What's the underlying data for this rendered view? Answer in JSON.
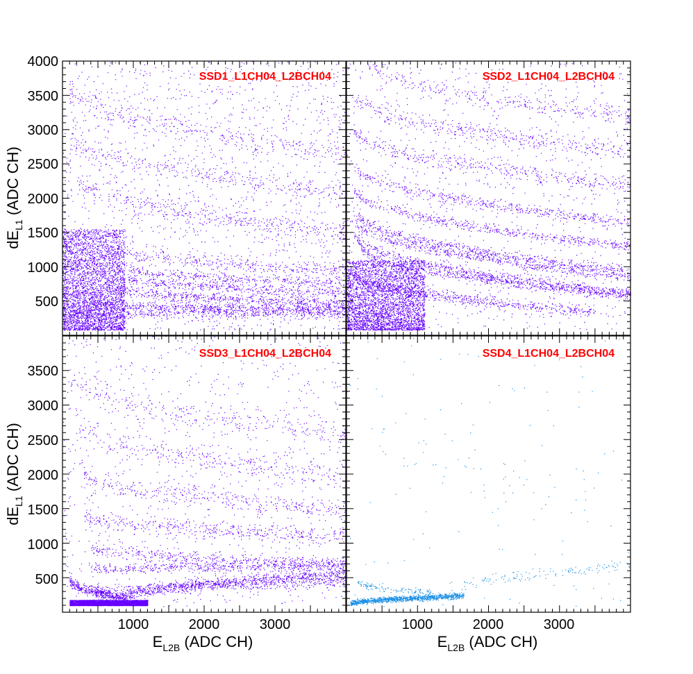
{
  "chart_data": [
    {
      "type": "scatter",
      "title": "SSD1_L1CH04_L2BCH04",
      "xlabel": "",
      "ylabel": "dE_{L1} (ADC CH)",
      "xlim": [
        0,
        4000
      ],
      "ylim": [
        0,
        4000
      ],
      "yticks": [
        "4000",
        "3500",
        "3000",
        "2500",
        "2000",
        "1500",
        "1000",
        "500"
      ],
      "xticks": [],
      "color": "#6600ff",
      "grid": false,
      "dense_region": {
        "x": [
          0,
          880
        ],
        "y": [
          80,
          1550
        ]
      },
      "bands": [
        {
          "e0": 100,
          "d0": 330,
          "e1": 4000,
          "d1": 330,
          "w": 45,
          "n": 600
        },
        {
          "e0": 400,
          "d0": 480,
          "e1": 4000,
          "d1": 380,
          "w": 35,
          "n": 600
        },
        {
          "e0": 800,
          "d0": 700,
          "e1": 4000,
          "d1": 470,
          "w": 35,
          "n": 500
        },
        {
          "e0": 900,
          "d0": 850,
          "e1": 4000,
          "d1": 620,
          "w": 35,
          "n": 420
        },
        {
          "e0": 900,
          "d0": 1000,
          "e1": 4000,
          "d1": 760,
          "w": 35,
          "n": 350
        },
        {
          "e0": 900,
          "d0": 1250,
          "e1": 4000,
          "d1": 950,
          "w": 55,
          "n": 300
        },
        {
          "e0": 200,
          "d0": 2300,
          "e1": 4000,
          "d1": 1500,
          "w": 70,
          "n": 350
        },
        {
          "e0": 100,
          "d0": 2900,
          "e1": 4000,
          "d1": 2100,
          "w": 70,
          "n": 300
        },
        {
          "e0": 100,
          "d0": 3600,
          "e1": 4000,
          "d1": 2700,
          "w": 80,
          "n": 280
        }
      ],
      "scatter_density": 1600
    },
    {
      "type": "scatter",
      "title": "SSD2_L1CH04_L2BCH04",
      "xlabel": "",
      "ylabel": "",
      "xlim": [
        0,
        4000
      ],
      "ylim": [
        0,
        4000
      ],
      "yticks": [],
      "xticks": [],
      "color": "#6600ff",
      "grid": false,
      "dense_region": {
        "x": [
          0,
          1100
        ],
        "y": [
          80,
          1100
        ]
      },
      "bands": [
        {
          "e0": 100,
          "d0": 900,
          "e1": 3500,
          "d1": 350,
          "w": 40,
          "n": 600
        },
        {
          "e0": 200,
          "d0": 1300,
          "e1": 4000,
          "d1": 580,
          "w": 35,
          "n": 600
        },
        {
          "e0": 100,
          "d0": 1500,
          "e1": 4000,
          "d1": 620,
          "w": 35,
          "n": 550
        },
        {
          "e0": 100,
          "d0": 1700,
          "e1": 4000,
          "d1": 860,
          "w": 35,
          "n": 550
        },
        {
          "e0": 100,
          "d0": 1850,
          "e1": 4000,
          "d1": 930,
          "w": 35,
          "n": 500
        },
        {
          "e0": 100,
          "d0": 2150,
          "e1": 4000,
          "d1": 1300,
          "w": 35,
          "n": 500
        },
        {
          "e0": 100,
          "d0": 2500,
          "e1": 4000,
          "d1": 1650,
          "w": 45,
          "n": 450
        },
        {
          "e0": 100,
          "d0": 3000,
          "e1": 4000,
          "d1": 2200,
          "w": 60,
          "n": 400
        },
        {
          "e0": 100,
          "d0": 3500,
          "e1": 4000,
          "d1": 2700,
          "w": 60,
          "n": 380
        },
        {
          "e0": 300,
          "d0": 4000,
          "e1": 4000,
          "d1": 3200,
          "w": 70,
          "n": 300
        }
      ],
      "scatter_density": 900
    },
    {
      "type": "scatter",
      "title": "SSD3_L1CH04_L2BCH04",
      "xlabel": "E_{L2B} (ADC CH)",
      "ylabel": "dE_{L1} (ADC CH)",
      "xlim": [
        0,
        4000
      ],
      "ylim": [
        0,
        4000
      ],
      "yticks": [
        "3500",
        "3000",
        "2500",
        "2000",
        "1500",
        "1000",
        "500"
      ],
      "xticks": [
        "1000",
        "2000",
        "3000"
      ],
      "color": "#6600ff",
      "grid": false,
      "dense_region": {
        "x": [
          100,
          1200
        ],
        "y": [
          100,
          180
        ]
      },
      "bands": [
        {
          "e0": 100,
          "d0": 480,
          "e1": 900,
          "d1": 200,
          "w": 40,
          "n": 450
        },
        {
          "e0": 900,
          "d0": 200,
          "e1": 4000,
          "d1": 560,
          "w": 40,
          "n": 700
        },
        {
          "e0": 500,
          "d0": 250,
          "e1": 4000,
          "d1": 450,
          "w": 40,
          "n": 550
        },
        {
          "e0": 400,
          "d0": 620,
          "e1": 4000,
          "d1": 680,
          "w": 40,
          "n": 500
        },
        {
          "e0": 400,
          "d0": 950,
          "e1": 4000,
          "d1": 700,
          "w": 45,
          "n": 420
        },
        {
          "e0": 300,
          "d0": 1400,
          "e1": 4000,
          "d1": 1100,
          "w": 60,
          "n": 400
        },
        {
          "e0": 300,
          "d0": 2000,
          "e1": 4000,
          "d1": 1500,
          "w": 70,
          "n": 360
        },
        {
          "e0": 200,
          "d0": 2700,
          "e1": 4000,
          "d1": 2000,
          "w": 80,
          "n": 300
        },
        {
          "e0": 100,
          "d0": 3400,
          "e1": 4000,
          "d1": 2600,
          "w": 80,
          "n": 260
        }
      ],
      "scatter_density": 900
    },
    {
      "type": "scatter",
      "title": "SSD4_L1CH04_L2BCH04",
      "xlabel": "E_{L2B} (ADC CH)",
      "ylabel": "",
      "xlim": [
        0,
        4000
      ],
      "ylim": [
        0,
        4000
      ],
      "yticks": [],
      "xticks": [
        "1000",
        "2000",
        "3000"
      ],
      "color": "#1a8fe6",
      "grid": false,
      "dense_region": null,
      "bands": [
        {
          "e0": 50,
          "d0": 120,
          "e1": 1650,
          "d1": 240,
          "w": 20,
          "n": 1100
        },
        {
          "e0": 150,
          "d0": 450,
          "e1": 1200,
          "d1": 280,
          "w": 25,
          "n": 120
        },
        {
          "e0": 1600,
          "d0": 320,
          "e1": 4000,
          "d1": 680,
          "w": 40,
          "n": 130
        },
        {
          "e0": 400,
          "d0": 2800,
          "e1": 3000,
          "d1": 1700,
          "w": 150,
          "n": 40
        }
      ],
      "scatter_density": 120
    }
  ]
}
